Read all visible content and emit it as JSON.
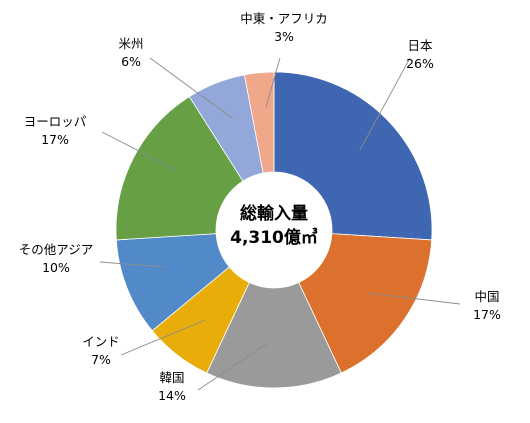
{
  "chart_data": {
    "type": "pie",
    "subtype": "donut",
    "center_label": {
      "line1": "総輸入量",
      "line2": "4,310億㎥"
    },
    "start_angle_deg": 0,
    "direction": "clockwise",
    "slices": [
      {
        "name": "日本",
        "value": 26,
        "value_label": "26%",
        "color": "#3F66B1"
      },
      {
        "name": "中国",
        "value": 17,
        "value_label": "17%",
        "color": "#DB712D"
      },
      {
        "name": "韓国",
        "value": 14,
        "value_label": "14%",
        "color": "#9A9A9A"
      },
      {
        "name": "インド",
        "value": 7,
        "value_label": "7%",
        "color": "#E8AD08"
      },
      {
        "name": "その他アジア",
        "value": 10,
        "value_label": "10%",
        "color": "#5289C8"
      },
      {
        "name": "ヨーロッパ",
        "value": 17,
        "value_label": "17%",
        "color": "#67A044"
      },
      {
        "name": "米州",
        "value": 6,
        "value_label": "6%",
        "color": "#93A8D9"
      },
      {
        "name": "中東・アフリカ",
        "value": 3,
        "value_label": "3%",
        "color": "#F1A78A"
      }
    ],
    "legend": "none",
    "label_style": "outside-with-leader-lines"
  }
}
